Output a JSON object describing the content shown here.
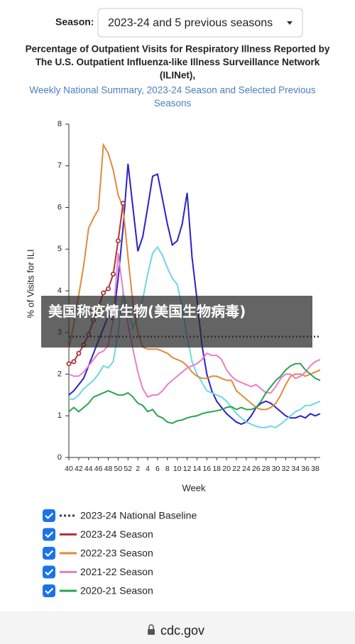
{
  "season_label": "Season:",
  "season_select": "2023-24 and 5 previous seasons",
  "caption": "美国称疫情生物(美国生物病毒)",
  "url": "cdc.gov",
  "chart_data": {
    "type": "line",
    "title": [
      "Percentage of Outpatient Visits for Respiratory Illness Reported by",
      "The U.S. Outpatient Influenza-like Illness Surveillance Network",
      "(ILINet),"
    ],
    "subtitle": [
      "Weekly National Summary, 2023-24 Season and Selected Previous",
      "Seasons"
    ],
    "x_label": "Week",
    "y_label": "% of Visits for ILI",
    "categories": [
      40,
      null,
      42,
      null,
      44,
      null,
      46,
      null,
      48,
      null,
      50,
      null,
      52,
      null,
      2,
      null,
      4,
      null,
      6,
      null,
      8,
      null,
      10,
      null,
      12,
      null,
      14,
      null,
      16,
      null,
      18,
      null,
      20,
      null,
      22,
      null,
      24,
      null,
      26,
      null,
      28,
      null,
      30,
      null,
      32,
      null,
      34,
      null,
      36,
      null,
      38,
      null
    ],
    "ylim": [
      0,
      8
    ],
    "yticks": [
      0,
      1,
      2,
      3,
      4,
      5,
      6,
      7,
      8
    ],
    "series": [
      {
        "name": "2023-24 National Baseline",
        "color": "#2b3a67",
        "dash": true,
        "values": [
          2.9,
          2.9,
          2.9,
          2.9,
          2.9,
          2.9,
          2.9,
          2.9,
          2.9,
          2.9,
          2.9,
          2.9,
          2.9,
          2.9,
          2.9,
          2.9,
          2.9,
          2.9,
          2.9,
          2.9,
          2.9,
          2.9,
          2.9,
          2.9,
          2.9,
          2.9,
          2.9,
          2.9,
          2.9,
          2.9,
          2.9,
          2.9,
          2.9,
          2.9,
          2.9,
          2.9,
          2.9,
          2.9,
          2.9,
          2.9,
          2.9,
          2.9,
          2.9,
          2.9,
          2.9,
          2.9,
          2.9,
          2.9,
          2.9,
          2.9,
          2.9,
          2.9
        ]
      },
      {
        "color": "#2c22c8",
        "values": [
          1.5,
          1.6,
          1.75,
          1.9,
          2.2,
          2.5,
          2.8,
          3.1,
          3.4,
          3.3,
          4.3,
          5.5,
          7.05,
          6.0,
          4.95,
          5.3,
          6.0,
          6.75,
          6.8,
          6.2,
          5.6,
          5.1,
          5.2,
          5.6,
          6.35,
          4.8,
          3.8,
          2.7,
          2.0,
          1.6,
          1.35,
          1.2,
          1.05,
          0.95,
          0.85,
          0.8,
          0.85,
          1.0,
          1.2,
          1.3,
          1.35,
          1.3,
          1.2,
          1.1,
          1.0,
          0.95,
          0.95,
          1.0,
          0.95,
          1.05,
          1.0,
          1.05
        ]
      },
      {
        "color": "#6fd6e8",
        "values": [
          1.4,
          1.4,
          1.5,
          1.65,
          1.75,
          1.85,
          2.0,
          2.2,
          2.15,
          2.3,
          3.0,
          3.95,
          3.55,
          3.1,
          3.4,
          3.8,
          4.4,
          4.9,
          5.05,
          4.85,
          4.55,
          4.3,
          4.15,
          3.6,
          2.9,
          2.3,
          2.0,
          1.8,
          1.6,
          1.55,
          1.5,
          1.45,
          1.35,
          1.2,
          1.05,
          0.95,
          0.85,
          0.8,
          0.75,
          0.72,
          0.72,
          0.75,
          0.72,
          0.8,
          0.9,
          1.0,
          1.1,
          1.15,
          1.25,
          1.25,
          1.3,
          1.35
        ]
      },
      {
        "name": "2022-23 Season",
        "color": "#e08a3c",
        "values": [
          2.6,
          3.2,
          3.9,
          4.6,
          5.5,
          5.75,
          5.95,
          7.5,
          7.3,
          6.9,
          6.3,
          6.0,
          4.8,
          3.7,
          3.0,
          2.65,
          2.6,
          2.6,
          2.6,
          2.55,
          2.5,
          2.4,
          2.35,
          2.3,
          2.2,
          2.05,
          1.95,
          1.9,
          1.9,
          1.95,
          1.95,
          1.9,
          1.85,
          1.85,
          1.6,
          1.5,
          1.4,
          1.3,
          1.2,
          1.15,
          1.15,
          1.2,
          1.3,
          1.5,
          1.75,
          1.95,
          2.0,
          2.0,
          1.95,
          2.0,
          2.05,
          2.1
        ]
      },
      {
        "name": "2021-22 Season",
        "color": "#e87ec9",
        "values": [
          2.0,
          1.95,
          1.95,
          2.05,
          2.2,
          2.35,
          2.5,
          2.55,
          2.7,
          3.3,
          4.9,
          4.0,
          3.2,
          2.6,
          2.05,
          1.65,
          1.45,
          1.5,
          1.5,
          1.6,
          1.75,
          1.85,
          1.95,
          2.05,
          2.15,
          2.2,
          2.25,
          2.35,
          2.5,
          2.45,
          2.45,
          2.35,
          2.1,
          1.95,
          1.85,
          1.8,
          1.75,
          1.7,
          1.75,
          1.65,
          1.55,
          1.55,
          1.7,
          1.9,
          2.0,
          2.0,
          1.9,
          1.95,
          2.05,
          2.2,
          2.3,
          2.35
        ]
      },
      {
        "name": "2020-21 Season",
        "color": "#2aa44f",
        "values": [
          1.1,
          1.2,
          1.1,
          1.2,
          1.3,
          1.45,
          1.5,
          1.55,
          1.6,
          1.55,
          1.5,
          1.5,
          1.55,
          1.45,
          1.3,
          1.25,
          1.1,
          1.15,
          1.0,
          0.95,
          0.85,
          0.82,
          0.88,
          0.9,
          0.95,
          0.98,
          1.0,
          1.05,
          1.08,
          1.1,
          1.12,
          1.15,
          1.2,
          1.22,
          1.15,
          1.2,
          1.15,
          1.15,
          1.2,
          1.35,
          1.55,
          1.7,
          1.85,
          1.95,
          2.1,
          2.2,
          2.25,
          2.25,
          2.1,
          2.0,
          1.9,
          1.85
        ]
      },
      {
        "name": "2023-24 Season",
        "color": "#b0343c",
        "markers": true,
        "values": [
          2.25,
          2.3,
          2.5,
          2.7,
          2.95,
          3.3,
          3.6,
          3.95,
          4.05,
          4.4,
          5.2,
          6.1,
          null,
          null,
          null,
          null,
          null,
          null,
          null,
          null,
          null,
          null,
          null,
          null,
          null,
          null,
          null,
          null,
          null,
          null,
          null,
          null,
          null,
          null,
          null,
          null,
          null,
          null,
          null,
          null,
          null,
          null,
          null,
          null,
          null,
          null,
          null,
          null,
          null,
          null,
          null,
          null
        ]
      }
    ],
    "legend_order": [
      0,
      6,
      3,
      4,
      5
    ]
  }
}
